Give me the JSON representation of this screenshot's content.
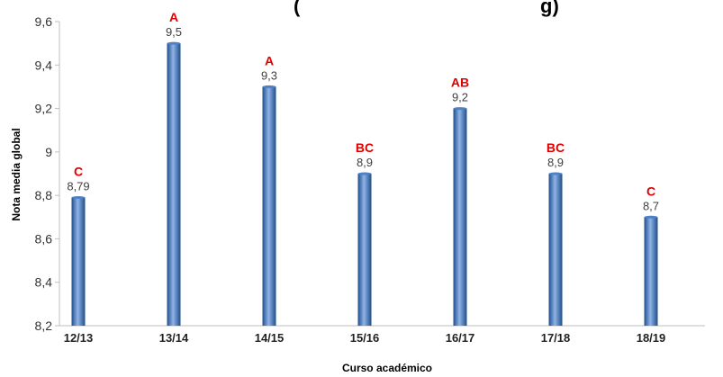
{
  "chart_data": {
    "type": "bar",
    "title_fragment_left": "(",
    "title_fragment_right": "g)",
    "categories": [
      "12/13",
      "13/14",
      "14/15",
      "15/16",
      "16/17",
      "17/18",
      "18/19"
    ],
    "series": [
      {
        "values": [
          8.79,
          9.5,
          9.3,
          8.9,
          9.2,
          8.9,
          8.7
        ]
      }
    ],
    "value_labels": [
      "8,79",
      "9,5",
      "9,3",
      "8,9",
      "9,2",
      "8,9",
      "8,7"
    ],
    "group_labels": [
      "C",
      "A",
      "A",
      "BC",
      "AB",
      "BC",
      "C"
    ],
    "xlabel": "Curso académico",
    "ylabel": "Nota media global",
    "ylim": [
      8.2,
      9.6
    ],
    "yticks": [
      8.2,
      8.4,
      8.6,
      8.8,
      9.0,
      9.2,
      9.4,
      9.6
    ],
    "ytick_labels": [
      "8,2",
      "8,4",
      "8,6",
      "8,8",
      "9",
      "9,2",
      "9,4",
      "9,6"
    ],
    "grid": false,
    "legend": "none",
    "colors": {
      "bar_dark": "#1f4e8c",
      "bar_mid": "#4f81c7",
      "bar_light": "#8fb3e6",
      "group_label": "#e00000",
      "value_label": "#404040",
      "axis": "#bfbfbf"
    }
  }
}
